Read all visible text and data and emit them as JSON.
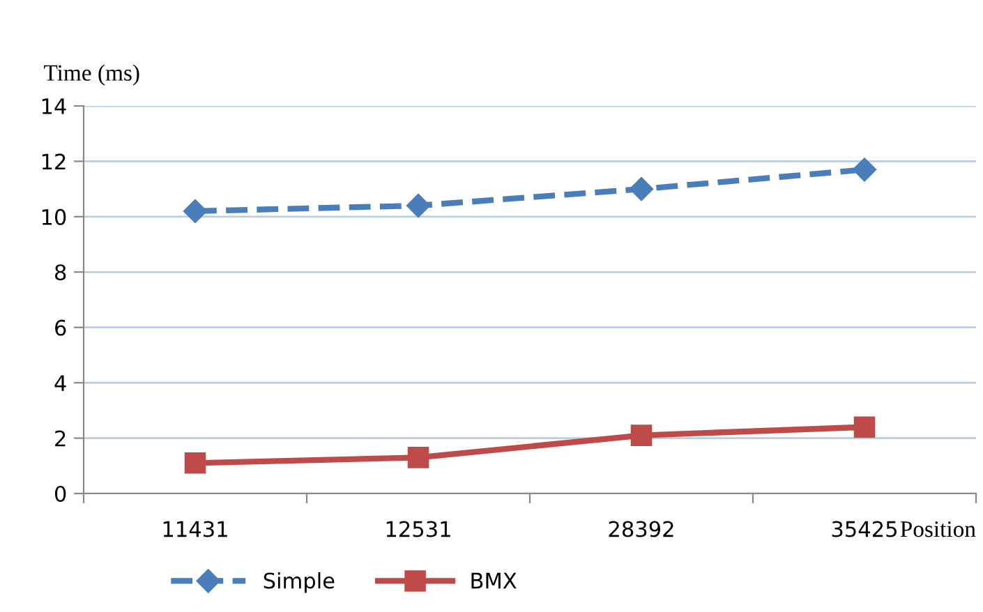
{
  "chart_data": {
    "type": "line",
    "ylabel": "Time (ms)",
    "xlabel": "Position",
    "categories": [
      "11431",
      "12531",
      "28392",
      "35425"
    ],
    "series": [
      {
        "name": "Simple",
        "color": "#4a7ebb",
        "values": [
          10.2,
          10.4,
          11.0,
          11.7
        ],
        "marker": "diamond",
        "line_style": "dashed"
      },
      {
        "name": "BMX",
        "color": "#be4b48",
        "values": [
          1.1,
          1.3,
          2.1,
          2.4
        ],
        "marker": "square",
        "line_style": "solid"
      }
    ],
    "ylim": [
      0,
      14
    ],
    "yticks": [
      0,
      2,
      4,
      6,
      8,
      10,
      12,
      14
    ],
    "grid": "y",
    "legend": "bottom"
  }
}
